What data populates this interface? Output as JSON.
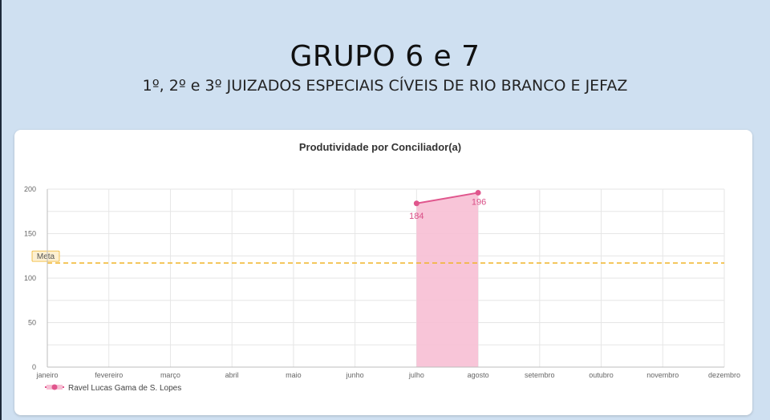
{
  "slide": {
    "title": "GRUPO 6 e 7",
    "subtitle": "1º, 2º e 3º JUIZADOS ESPECIAIS CÍVEIS DE RIO BRANCO E JEFAZ"
  },
  "chart_data": {
    "type": "area",
    "title": "Produtividade por Conciliador(a)",
    "categories": [
      "janeiro",
      "fevereiro",
      "março",
      "abril",
      "maio",
      "junho",
      "julho",
      "agosto",
      "setembro",
      "outubro",
      "novembro",
      "dezembro"
    ],
    "series": [
      {
        "name": "Ravel Lucas Gama de S. Lopes",
        "values": [
          null,
          null,
          null,
          null,
          null,
          null,
          184,
          196,
          null,
          null,
          null,
          null
        ],
        "color": "#e0568d",
        "fill": "#f7bfd4"
      }
    ],
    "reference_line": {
      "label": "Meta",
      "value": 117,
      "color": "#f0b429"
    },
    "ylim": [
      0,
      200
    ],
    "yticks": [
      0,
      50,
      100,
      150,
      200
    ],
    "grid": true,
    "legend_position": "bottom-left",
    "data_labels": [
      "184",
      "196"
    ]
  }
}
